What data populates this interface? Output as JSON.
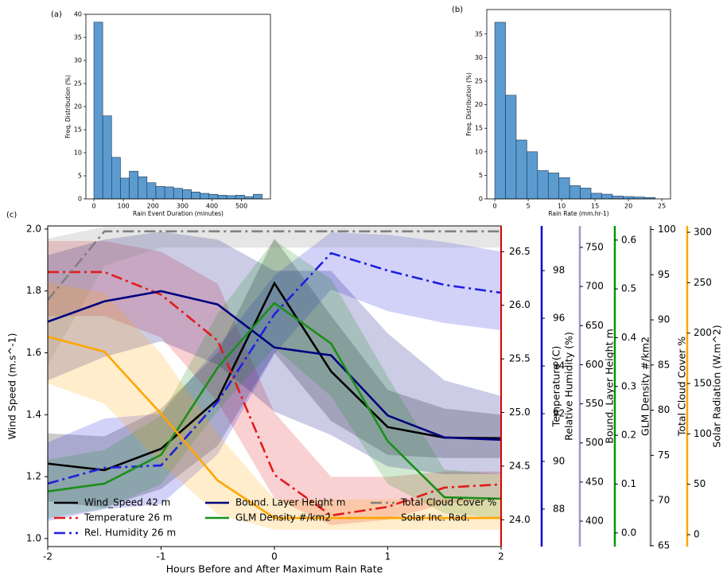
{
  "chart_data": [
    {
      "type": "histogram",
      "panel": "(a)",
      "xlabel": "Rain Event Duration (minutes)",
      "ylabel": "Freq. Distribution (%)",
      "bins": [
        0,
        30,
        60,
        90,
        120,
        150,
        180,
        210,
        240,
        270,
        300,
        330,
        360,
        390,
        420,
        450,
        480,
        510,
        540,
        570
      ],
      "values": [
        38.3,
        18,
        9,
        4.5,
        6,
        4.8,
        3.5,
        2.7,
        2.6,
        2.3,
        2.0,
        1.5,
        1.2,
        1.0,
        0.8,
        0.7,
        0.8,
        0.5,
        1.0
      ],
      "color": "#5b9bd0",
      "xlim": [
        -27,
        598
      ],
      "xticks": [
        0,
        100,
        200,
        300,
        400,
        500
      ],
      "ylim": [
        0,
        40
      ],
      "yticks": [
        0,
        5,
        10,
        15,
        20,
        25,
        30,
        35,
        40
      ]
    },
    {
      "type": "histogram",
      "panel": "(b)",
      "xlabel": "Rain Rate (mm.hr-1)",
      "ylabel": "Freq. Distribution (%)",
      "bins": [
        0,
        1.6,
        3.2,
        4.8,
        6.4,
        8,
        9.6,
        11.2,
        12.8,
        14.4,
        16,
        17.6,
        19.2,
        20.8,
        22.4,
        24
      ],
      "values": [
        37.5,
        22,
        12.5,
        10,
        6,
        5.5,
        4.5,
        2.8,
        2.3,
        1.2,
        1.0,
        0.6,
        0.5,
        0.4,
        0.3
      ],
      "color": "#5b9bd0",
      "xlim": [
        -1.2,
        26.3
      ],
      "xticks": [
        0,
        5,
        10,
        15,
        20,
        25
      ],
      "ylim": [
        0,
        40.2
      ],
      "yticks": [
        0,
        5,
        10,
        15,
        20,
        25,
        30,
        35
      ]
    },
    {
      "type": "line",
      "panel": "(c)",
      "xlabel": "Hours Before and After Maximum Rain Rate",
      "x": [
        -2,
        -1.5,
        -1,
        -0.5,
        0,
        0.5,
        1,
        1.5,
        2
      ],
      "xlim": [
        -2,
        2
      ],
      "xticks": [
        -2,
        -1,
        0,
        1,
        2
      ],
      "y_axes": [
        {
          "label": "Wind Speed (m.s^-1)",
          "color": "#000000",
          "ylim": [
            0.974,
            2.01
          ],
          "yticks": [
            {
              "value": 1,
              "label": "1.0"
            },
            1.2,
            1.4,
            1.6,
            1.8,
            {
              "value": 2,
              "label": "2.0"
            }
          ]
        },
        {
          "label": "Temperature (C)",
          "color": "#dd0000",
          "ylim": [
            23.75,
            26.74
          ],
          "yticks": [
            {
              "value": 24,
              "label": "24.0"
            },
            24.5,
            {
              "value": 25,
              "label": "25.0"
            },
            25.5,
            {
              "value": 26,
              "label": "26.0"
            },
            26.5
          ]
        },
        {
          "label": "Relative Humidity (%)",
          "color": "#0000cc",
          "ylim": [
            86.43,
            99.87
          ],
          "yticks": [
            88,
            90,
            92,
            94,
            96,
            98
          ]
        },
        {
          "label": "Bound. Layer Height m",
          "color": "#9a9ad0",
          "ylim": [
            367.5,
            777.4
          ],
          "yticks": [
            400,
            450,
            500,
            550,
            600,
            650,
            700,
            750
          ]
        },
        {
          "label": "GLM Density #/km2",
          "color": "#009900",
          "ylim": [
            -0.028,
            0.629
          ],
          "yticks": [
            {
              "value": 0,
              "label": "0.0"
            },
            0.1,
            0.2,
            0.3,
            0.4,
            0.5,
            0.6
          ]
        },
        {
          "label": "Total Cloud Cover %",
          "color": "#888888",
          "ylim": [
            64.9,
            100.4
          ],
          "yticks": [
            65,
            70,
            75,
            80,
            85,
            90,
            95,
            100
          ]
        },
        {
          "label": "Solar Radiation (W.m^2)",
          "color": "#ffa500",
          "ylim": [
            -11.8,
            306.3
          ],
          "yticks": [
            0,
            50,
            100,
            150,
            200,
            250,
            300
          ]
        }
      ],
      "series": [
        {
          "name": "Wind_Speed 42 m",
          "color": "#000000",
          "linestyle": "solid",
          "axis": 0,
          "values": [
            1.242,
            1.221,
            1.29,
            1.45,
            1.825,
            1.54,
            1.36,
            1.326,
            1.324
          ],
          "lower": [
            1.12,
            1.1,
            1.16,
            1.3,
            1.6,
            1.38,
            1.27,
            1.26,
            1.26
          ],
          "upper": [
            1.34,
            1.33,
            1.42,
            1.6,
            1.97,
            1.72,
            1.48,
            1.42,
            1.4
          ]
        },
        {
          "name": "Temperature 26 m",
          "color": "#e31a1c",
          "linestyle": "dashdot",
          "axis": 1,
          "values": [
            26.31,
            26.31,
            26.1,
            25.67,
            24.42,
            24.04,
            24.12,
            24.3,
            24.33
          ],
          "lower": [
            25.9,
            25.9,
            25.7,
            25.1,
            24.2,
            23.95,
            24.0,
            24.15,
            24.2
          ],
          "upper": [
            26.6,
            26.6,
            26.5,
            26.2,
            25.0,
            24.4,
            24.4,
            24.45,
            24.45
          ]
        },
        {
          "name": "Rel. Humidity 26 m",
          "color": "#1f1fe0",
          "linestyle": "dashdot",
          "axis": 2,
          "values": [
            89.07,
            89.73,
            89.83,
            92.5,
            96.17,
            98.73,
            98,
            97.4,
            97.07
          ],
          "lower": [
            87.5,
            88.0,
            88.2,
            90.3,
            94.5,
            97.2,
            96.3,
            95.8,
            95.5
          ],
          "upper": [
            90.8,
            91.8,
            92,
            94.8,
            97.8,
            99.6,
            99.5,
            99.2,
            98.8
          ]
        },
        {
          "name": "Bound. Layer Height m",
          "color": "#000080",
          "linestyle": "solid",
          "axis": 3,
          "values": [
            655,
            681,
            694,
            677,
            622,
            612,
            535,
            507,
            504
          ],
          "lower": [
            580,
            610,
            630,
            600,
            540,
            510,
            470,
            460,
            460
          ],
          "upper": [
            740,
            760,
            770,
            760,
            720,
            720,
            640,
            580,
            560
          ]
        },
        {
          "name": "GLM Density #/km2",
          "color": "#1a8f1a",
          "linestyle": "solid",
          "axis": 4,
          "values": [
            0.085,
            0.101,
            0.16,
            0.339,
            0.471,
            0.388,
            0.188,
            0.073,
            0.07
          ],
          "lower": [
            0.03,
            0.05,
            0.1,
            0.25,
            0.38,
            0.28,
            0.1,
            0.04,
            0.03
          ],
          "upper": [
            0.15,
            0.17,
            0.24,
            0.45,
            0.6,
            0.52,
            0.32,
            0.13,
            0.12
          ]
        },
        {
          "name": "Total Cloud Cover %",
          "color": "#808080",
          "linestyle": "dashdot",
          "axis": 5,
          "values": [
            92.2,
            99.8,
            99.8,
            99.8,
            99.8,
            99.8,
            99.8,
            99.8,
            99.8
          ],
          "lower": [
            85,
            96,
            98,
            98,
            98,
            98,
            98,
            98,
            98
          ],
          "upper": [
            99,
            100.3,
            100.3,
            100.3,
            100.3,
            100.3,
            100.3,
            100.3,
            100.3
          ]
        },
        {
          "name": "Solar Inc. Rad.",
          "color": "#ffa500",
          "linestyle": "solid",
          "axis": 6,
          "values": [
            196.5,
            181.5,
            120,
            53.7,
            16.6,
            16.6,
            16.6,
            16.6,
            16.6
          ],
          "lower": [
            150,
            130,
            70,
            20,
            5,
            5,
            5,
            5,
            5
          ],
          "upper": [
            250,
            240,
            180,
            100,
            35,
            35,
            35,
            35,
            35
          ]
        }
      ]
    }
  ]
}
